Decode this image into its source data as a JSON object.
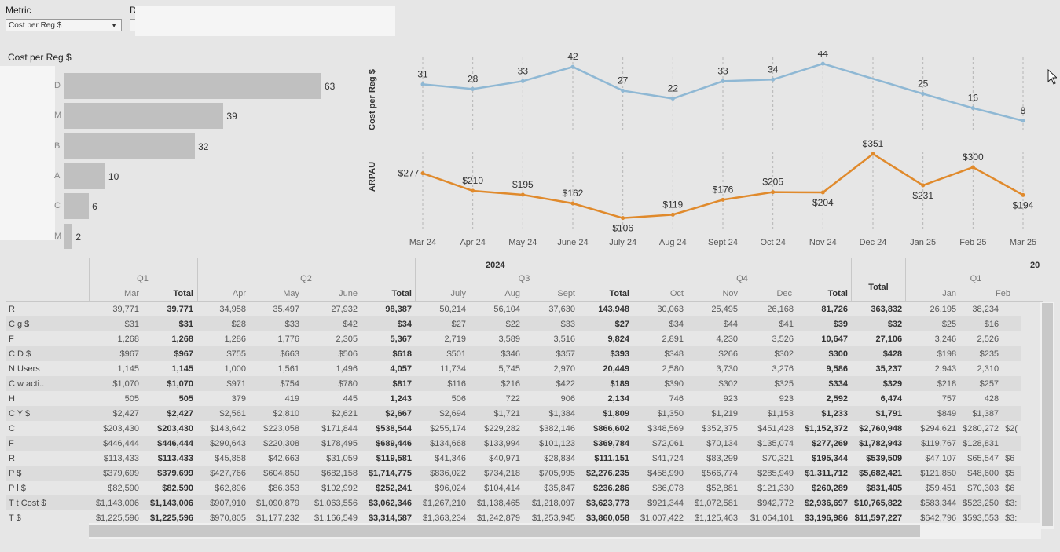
{
  "filters": {
    "metric_label": "Metric",
    "metric_value": "Cost per Reg $",
    "second_label": "D"
  },
  "bar_section": {
    "title": "Cost per Reg $",
    "bars": [
      {
        "cat": "D",
        "value": 63
      },
      {
        "cat": "M",
        "value": 39
      },
      {
        "cat": "B",
        "value": 32
      },
      {
        "cat": "A",
        "value": 10
      },
      {
        "cat": "C",
        "value": 6
      },
      {
        "cat": "M",
        "value": 2
      }
    ]
  },
  "chart_data": [
    {
      "type": "line",
      "ylabel": "Cost per Reg $",
      "x": [
        "Mar 24",
        "Apr 24",
        "May 24",
        "June 24",
        "July 24",
        "Aug 24",
        "Sept 24",
        "Oct 24",
        "Nov 24",
        "Dec 24",
        "Jan 25",
        "Feb 25",
        "Mar 25"
      ],
      "values": [
        31,
        28,
        33,
        42,
        27,
        22,
        33,
        34,
        44,
        null,
        25,
        16,
        8
      ],
      "labels": [
        "31",
        "28",
        "33",
        "42",
        "27",
        "22",
        "33",
        "34",
        "44",
        "",
        "25",
        "16",
        "8"
      ],
      "color": "#8fb8d4"
    },
    {
      "type": "line",
      "ylabel": "ARPAU",
      "x": [
        "Mar 24",
        "Apr 24",
        "May 24",
        "June 24",
        "July 24",
        "Aug 24",
        "Sept 24",
        "Oct 24",
        "Nov 24",
        "Dec 24",
        "Jan 25",
        "Feb 25",
        "Mar 25"
      ],
      "values": [
        277,
        210,
        195,
        162,
        106,
        119,
        176,
        205,
        204,
        351,
        231,
        300,
        194
      ],
      "labels": [
        "$277",
        "$210",
        "$195",
        "$162",
        "$106",
        "$119",
        "$176",
        "$205",
        "$204",
        "$351",
        "$231",
        "$300",
        "$194"
      ],
      "color": "#e08a2c"
    }
  ],
  "table": {
    "year": "2024",
    "year_next": "20",
    "quarters": [
      "Q1",
      "Q2",
      "Q3",
      "Q4",
      "Q1"
    ],
    "total_label": "Total",
    "months": [
      "Mar",
      "Apr",
      "May",
      "June",
      "July",
      "Aug",
      "Sept",
      "Oct",
      "Nov",
      "Dec",
      "Jan",
      "Feb"
    ],
    "rows": [
      {
        "label": "R",
        "v": [
          "39,771",
          "39,771",
          "34,958",
          "35,497",
          "27,932",
          "98,387",
          "50,214",
          "56,104",
          "37,630",
          "143,948",
          "30,063",
          "25,495",
          "26,168",
          "81,726",
          "363,832",
          "26,195",
          "38,234"
        ]
      },
      {
        "label": "C          g $",
        "v": [
          "$31",
          "$31",
          "$28",
          "$33",
          "$42",
          "$34",
          "$27",
          "$22",
          "$33",
          "$27",
          "$34",
          "$44",
          "$41",
          "$39",
          "$32",
          "$25",
          "$16"
        ]
      },
      {
        "label": "F",
        "v": [
          "1,268",
          "1,268",
          "1,286",
          "1,776",
          "2,305",
          "5,367",
          "2,719",
          "3,589",
          "3,516",
          "9,824",
          "2,891",
          "4,230",
          "3,526",
          "10,647",
          "27,106",
          "3,246",
          "2,526"
        ]
      },
      {
        "label": "C          D $",
        "v": [
          "$967",
          "$967",
          "$755",
          "$663",
          "$506",
          "$618",
          "$501",
          "$346",
          "$357",
          "$393",
          "$348",
          "$266",
          "$302",
          "$300",
          "$428",
          "$198",
          "$235"
        ]
      },
      {
        "label": "N         Users",
        "v": [
          "1,145",
          "1,145",
          "1,000",
          "1,561",
          "1,496",
          "4,057",
          "11,734",
          "5,745",
          "2,970",
          "20,449",
          "2,580",
          "3,730",
          "3,276",
          "9,586",
          "35,237",
          "2,943",
          "2,310"
        ]
      },
      {
        "label": "C          w acti..",
        "v": [
          "$1,070",
          "$1,070",
          "$971",
          "$754",
          "$780",
          "$817",
          "$116",
          "$216",
          "$422",
          "$189",
          "$390",
          "$302",
          "$325",
          "$334",
          "$329",
          "$218",
          "$257"
        ]
      },
      {
        "label": "H",
        "v": [
          "505",
          "505",
          "379",
          "419",
          "445",
          "1,243",
          "506",
          "722",
          "906",
          "2,134",
          "746",
          "923",
          "923",
          "2,592",
          "6,474",
          "757",
          "428"
        ]
      },
      {
        "label": "C          Y $",
        "v": [
          "$2,427",
          "$2,427",
          "$2,561",
          "$2,810",
          "$2,621",
          "$2,667",
          "$2,694",
          "$1,721",
          "$1,384",
          "$1,809",
          "$1,350",
          "$1,219",
          "$1,153",
          "$1,233",
          "$1,791",
          "$849",
          "$1,387"
        ]
      },
      {
        "label": "C",
        "v": [
          "$203,430",
          "$203,430",
          "$143,642",
          "$223,058",
          "$171,844",
          "$538,544",
          "$255,174",
          "$229,282",
          "$382,146",
          "$866,602",
          "$348,569",
          "$352,375",
          "$451,428",
          "$1,152,372",
          "$2,760,948",
          "$294,621",
          "$280,272"
        ]
      },
      {
        "label": "F",
        "v": [
          "$446,444",
          "$446,444",
          "$290,643",
          "$220,308",
          "$178,495",
          "$689,446",
          "$134,668",
          "$133,994",
          "$101,123",
          "$369,784",
          "$72,061",
          "$70,134",
          "$135,074",
          "$277,269",
          "$1,782,943",
          "$119,767",
          "$128,831"
        ]
      },
      {
        "label": "R",
        "v": [
          "$113,433",
          "$113,433",
          "$45,858",
          "$42,663",
          "$31,059",
          "$119,581",
          "$41,346",
          "$40,971",
          "$28,834",
          "$111,151",
          "$41,724",
          "$83,299",
          "$70,321",
          "$195,344",
          "$539,509",
          "$47,107",
          "$65,547"
        ]
      },
      {
        "label": "P          $",
        "v": [
          "$379,699",
          "$379,699",
          "$427,766",
          "$604,850",
          "$682,158",
          "$1,714,775",
          "$836,022",
          "$734,218",
          "$705,995",
          "$2,276,235",
          "$458,990",
          "$566,774",
          "$285,949",
          "$1,311,712",
          "$5,682,421",
          "$121,850",
          "$48,600"
        ]
      },
      {
        "label": "P          l $",
        "v": [
          "$82,590",
          "$82,590",
          "$62,896",
          "$86,353",
          "$102,992",
          "$252,241",
          "$96,024",
          "$104,414",
          "$35,847",
          "$236,286",
          "$86,078",
          "$52,881",
          "$121,330",
          "$260,289",
          "$831,405",
          "$59,451",
          "$70,303"
        ]
      },
      {
        "label": "T          t Cost $",
        "v": [
          "$1,143,006",
          "$1,143,006",
          "$907,910",
          "$1,090,879",
          "$1,063,556",
          "$3,062,346",
          "$1,267,210",
          "$1,138,465",
          "$1,218,097",
          "$3,623,773",
          "$921,344",
          "$1,072,581",
          "$942,772",
          "$2,936,697",
          "$10,765,822",
          "$583,344",
          "$523,250"
        ]
      },
      {
        "label": "T          $",
        "v": [
          "$1,225,596",
          "$1,225,596",
          "$970,805",
          "$1,177,232",
          "$1,166,549",
          "$3,314,587",
          "$1,363,234",
          "$1,242,879",
          "$1,253,945",
          "$3,860,058",
          "$1,007,422",
          "$1,125,463",
          "$1,064,101",
          "$3,196,986",
          "$11,597,227",
          "$642,796",
          "$593,553"
        ]
      }
    ],
    "overflow": [
      "",
      "",
      "",
      "$2(",
      "",
      "$6",
      "$5",
      "$6",
      "$3:",
      "$3:"
    ]
  }
}
